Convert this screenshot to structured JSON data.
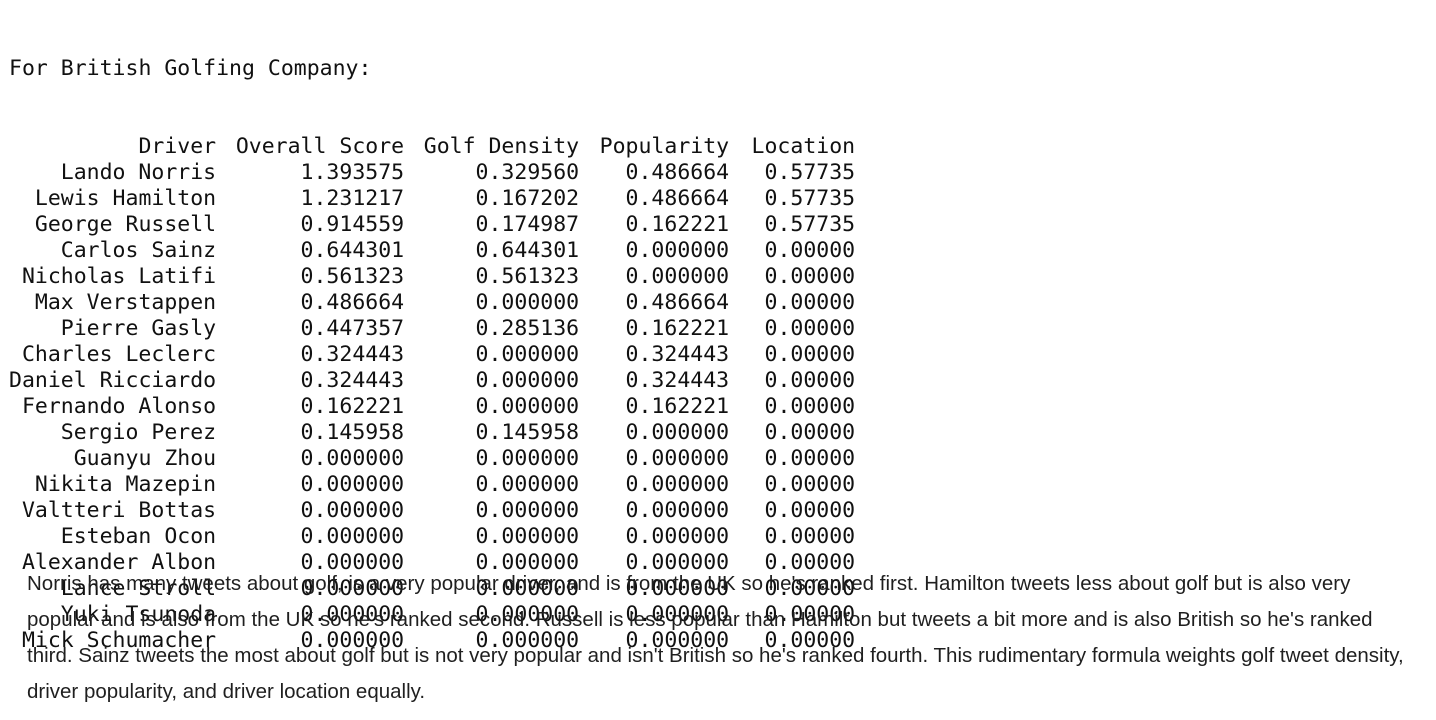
{
  "output": {
    "heading": "For British Golfing Company:",
    "columns": [
      "Driver",
      "Overall Score",
      "Golf Density",
      "Popularity",
      "Location"
    ],
    "rows": [
      [
        "Lando Norris",
        "1.393575",
        "0.329560",
        "0.486664",
        "0.57735"
      ],
      [
        "Lewis Hamilton",
        "1.231217",
        "0.167202",
        "0.486664",
        "0.57735"
      ],
      [
        "George Russell",
        "0.914559",
        "0.174987",
        "0.162221",
        "0.57735"
      ],
      [
        "Carlos Sainz",
        "0.644301",
        "0.644301",
        "0.000000",
        "0.00000"
      ],
      [
        "Nicholas Latifi",
        "0.561323",
        "0.561323",
        "0.000000",
        "0.00000"
      ],
      [
        "Max Verstappen",
        "0.486664",
        "0.000000",
        "0.486664",
        "0.00000"
      ],
      [
        "Pierre Gasly",
        "0.447357",
        "0.285136",
        "0.162221",
        "0.00000"
      ],
      [
        "Charles Leclerc",
        "0.324443",
        "0.000000",
        "0.324443",
        "0.00000"
      ],
      [
        "Daniel Ricciardo",
        "0.324443",
        "0.000000",
        "0.324443",
        "0.00000"
      ],
      [
        "Fernando Alonso",
        "0.162221",
        "0.000000",
        "0.162221",
        "0.00000"
      ],
      [
        "Sergio Perez",
        "0.145958",
        "0.145958",
        "0.000000",
        "0.00000"
      ],
      [
        "Guanyu Zhou",
        "0.000000",
        "0.000000",
        "0.000000",
        "0.00000"
      ],
      [
        "Nikita Mazepin",
        "0.000000",
        "0.000000",
        "0.000000",
        "0.00000"
      ],
      [
        "Valtteri Bottas",
        "0.000000",
        "0.000000",
        "0.000000",
        "0.00000"
      ],
      [
        "Esteban Ocon",
        "0.000000",
        "0.000000",
        "0.000000",
        "0.00000"
      ],
      [
        "Alexander Albon",
        "0.000000",
        "0.000000",
        "0.000000",
        "0.00000"
      ],
      [
        "Lance Stroll",
        "0.000000",
        "0.000000",
        "0.000000",
        "0.00000"
      ],
      [
        "Yuki Tsunoda",
        "0.000000",
        "0.000000",
        "0.000000",
        "0.00000"
      ],
      [
        "Mick Schumacher",
        "0.000000",
        "0.000000",
        "0.000000",
        "0.00000"
      ]
    ]
  },
  "markdown": {
    "paragraph": "Norris has many tweets about golf, is a very popular driver, and is from the UK so he's ranked first. Hamilton tweets less about golf but is also very popular and is also from the UK so he's ranked second. Russell is less popular than Hamilton but tweets a bit more and is also British so he's ranked third. Sainz tweets the most about golf but is not very popular and isn't British so he's ranked fourth. This rudimentary formula weights golf tweet density, driver popularity, and driver location equally."
  }
}
